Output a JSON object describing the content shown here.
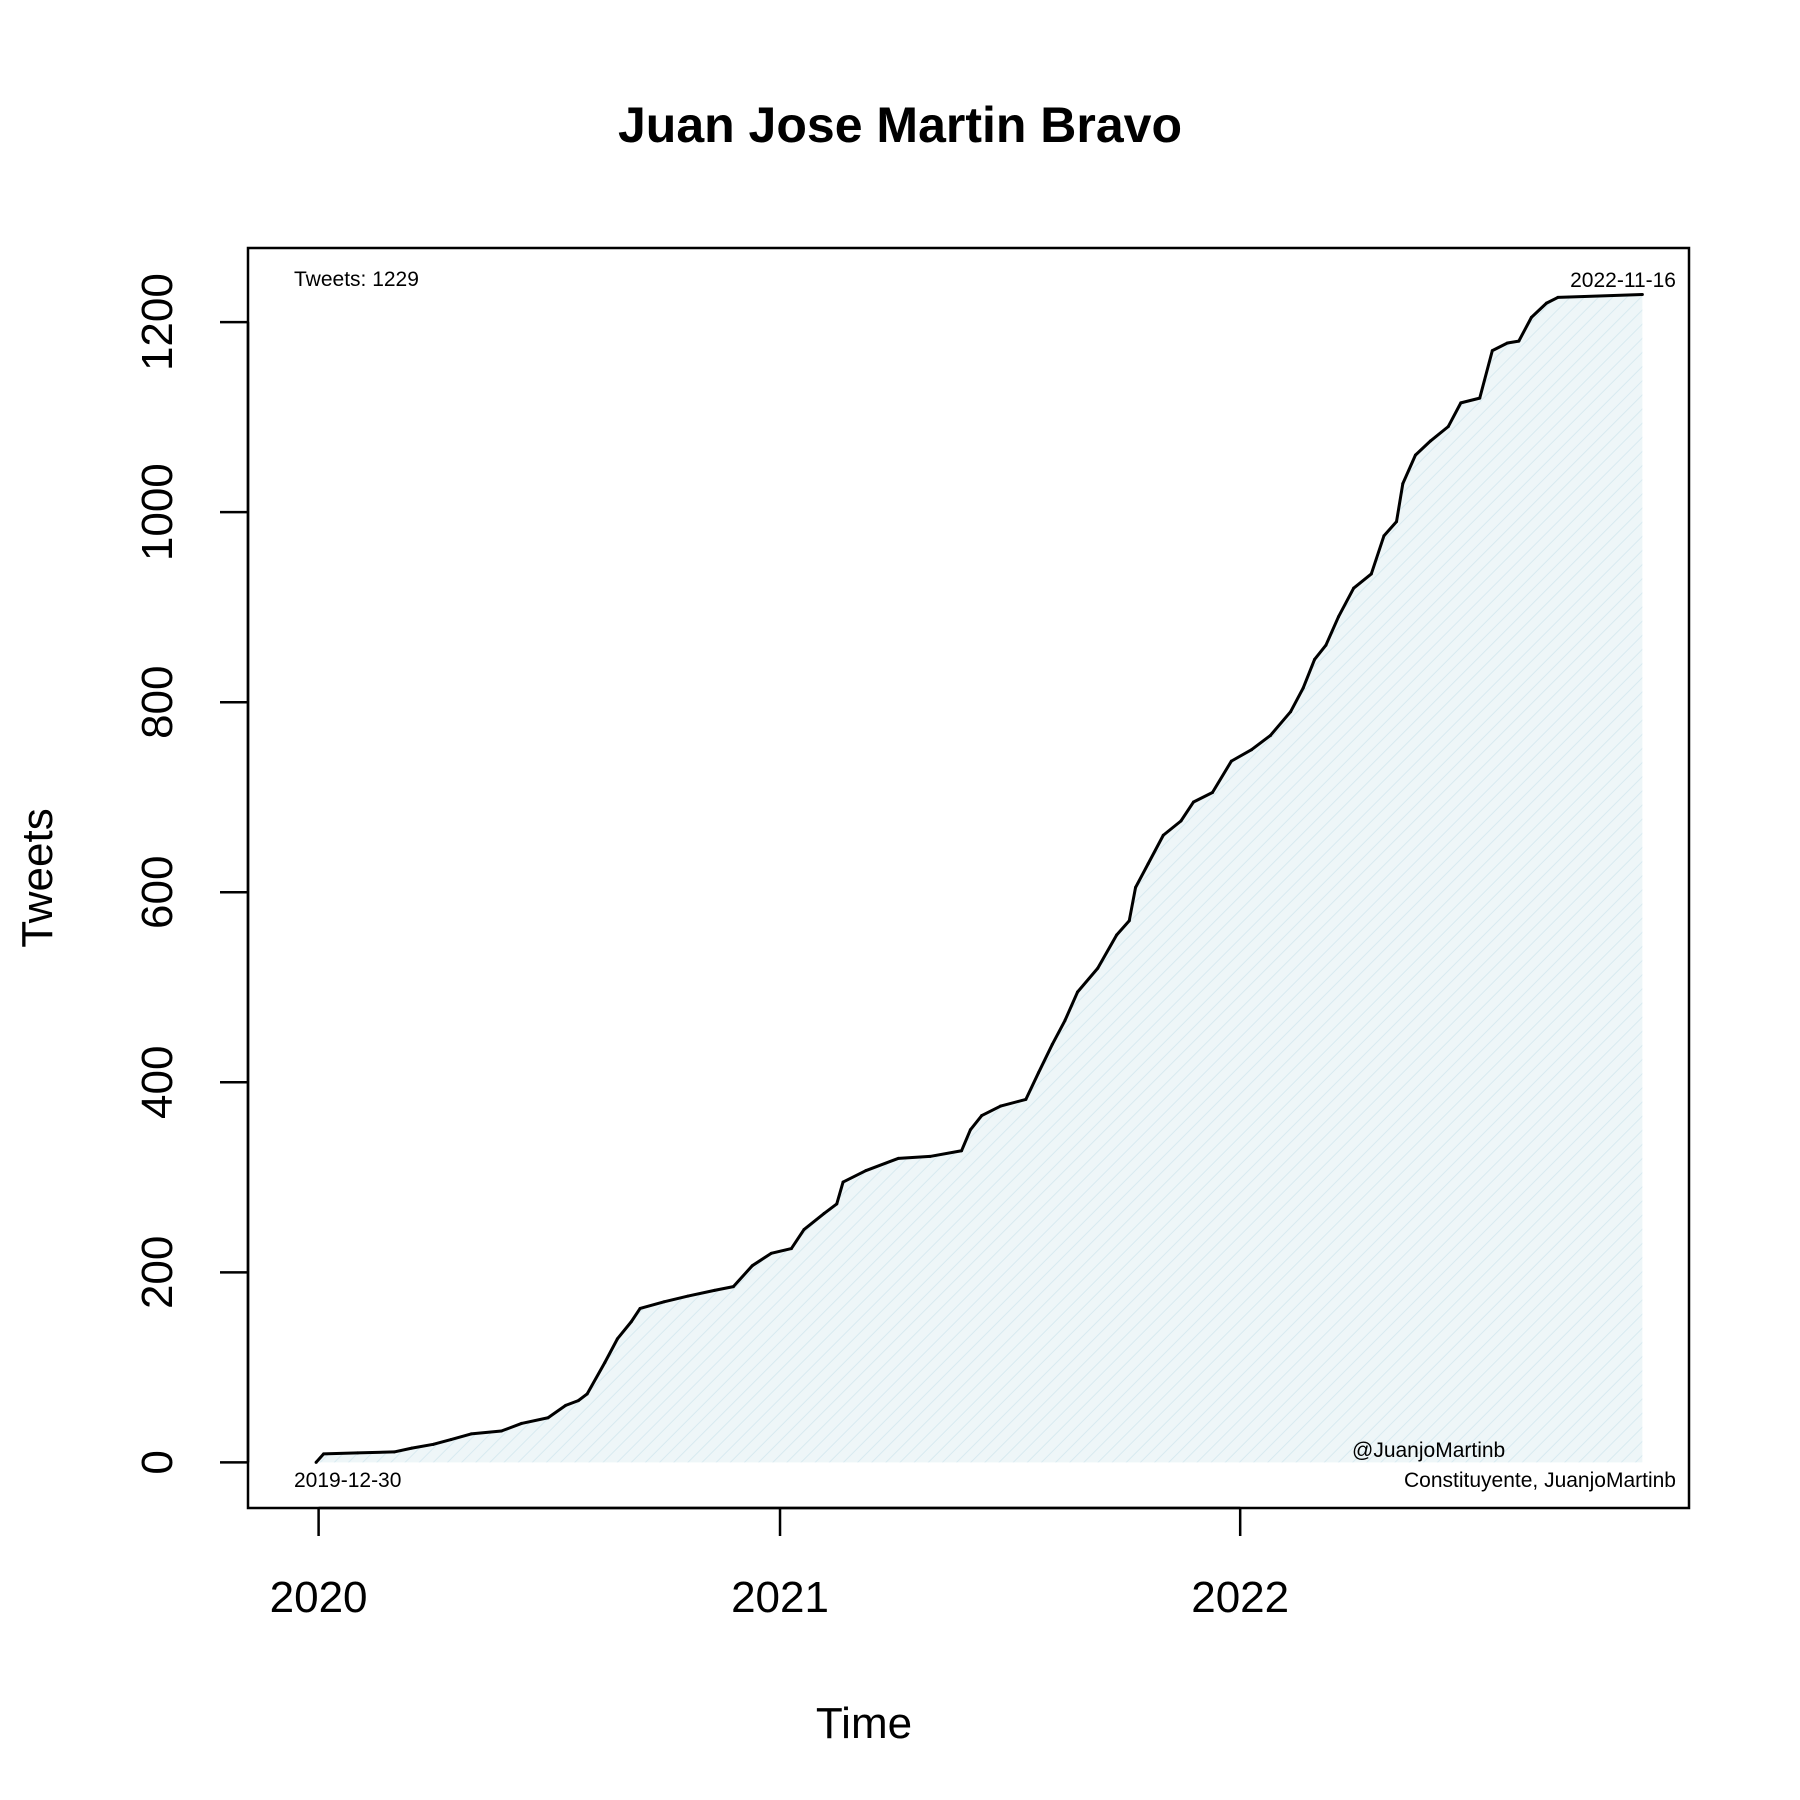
{
  "chart_data": {
    "type": "area",
    "title": "Juan Jose Martin Bravo",
    "xlabel": "Time",
    "ylabel": "Tweets",
    "ylim": [
      -48,
      1278
    ],
    "xlim": [
      "2019-11-06",
      "2022-12-23"
    ],
    "x_ticks": [
      {
        "date": "2020-01-01",
        "label": "2020"
      },
      {
        "date": "2021-01-01",
        "label": "2021"
      },
      {
        "date": "2022-01-01",
        "label": "2022"
      }
    ],
    "y_ticks": [
      0,
      200,
      400,
      600,
      800,
      1000,
      1200
    ],
    "grid": false,
    "colors": {
      "line": "#000000",
      "fill": "#eef6f8",
      "hatch": "#d8eaf0"
    },
    "annotations": {
      "total": "Tweets: 1229",
      "start_date": "2019-12-30",
      "end_date": "2022-11-16",
      "handle": "@JuanjoMartinb",
      "source": "Constituyente, JuanjoMartinb"
    },
    "series": [
      {
        "points": [
          [
            "2019-12-30",
            0
          ],
          [
            "2020-01-05",
            9
          ],
          [
            "2020-02-01",
            10
          ],
          [
            "2020-03-01",
            11
          ],
          [
            "2020-03-15",
            15
          ],
          [
            "2020-04-01",
            19
          ],
          [
            "2020-04-15",
            24
          ],
          [
            "2020-05-01",
            30
          ],
          [
            "2020-05-25",
            33
          ],
          [
            "2020-06-10",
            41
          ],
          [
            "2020-07-01",
            47
          ],
          [
            "2020-07-15",
            60
          ],
          [
            "2020-07-25",
            65
          ],
          [
            "2020-08-01",
            72
          ],
          [
            "2020-08-15",
            105
          ],
          [
            "2020-08-25",
            130
          ],
          [
            "2020-09-05",
            148
          ],
          [
            "2020-09-12",
            162
          ],
          [
            "2020-10-01",
            169
          ],
          [
            "2020-10-20",
            175
          ],
          [
            "2020-11-10",
            181
          ],
          [
            "2020-11-25",
            185
          ],
          [
            "2020-12-10",
            207
          ],
          [
            "2020-12-25",
            220
          ],
          [
            "2021-01-10",
            225
          ],
          [
            "2021-01-20",
            245
          ],
          [
            "2021-02-05",
            262
          ],
          [
            "2021-02-15",
            272
          ],
          [
            "2021-02-20",
            295
          ],
          [
            "2021-03-10",
            307
          ],
          [
            "2021-04-05",
            320
          ],
          [
            "2021-04-30",
            322
          ],
          [
            "2021-05-25",
            328
          ],
          [
            "2021-06-01",
            350
          ],
          [
            "2021-06-10",
            365
          ],
          [
            "2021-06-25",
            375
          ],
          [
            "2021-07-15",
            382
          ],
          [
            "2021-07-25",
            410
          ],
          [
            "2021-08-05",
            440
          ],
          [
            "2021-08-15",
            465
          ],
          [
            "2021-08-25",
            495
          ],
          [
            "2021-09-10",
            520
          ],
          [
            "2021-09-25",
            555
          ],
          [
            "2021-10-05",
            570
          ],
          [
            "2021-10-10",
            605
          ],
          [
            "2021-10-20",
            630
          ],
          [
            "2021-11-01",
            660
          ],
          [
            "2021-11-15",
            675
          ],
          [
            "2021-11-25",
            695
          ],
          [
            "2021-12-10",
            705
          ],
          [
            "2021-12-25",
            738
          ],
          [
            "2022-01-10",
            750
          ],
          [
            "2022-01-25",
            765
          ],
          [
            "2022-02-10",
            790
          ],
          [
            "2022-02-20",
            815
          ],
          [
            "2022-03-01",
            845
          ],
          [
            "2022-03-10",
            860
          ],
          [
            "2022-03-20",
            890
          ],
          [
            "2022-04-01",
            920
          ],
          [
            "2022-04-15",
            935
          ],
          [
            "2022-04-25",
            975
          ],
          [
            "2022-05-05",
            990
          ],
          [
            "2022-05-10",
            1030
          ],
          [
            "2022-05-20",
            1060
          ],
          [
            "2022-06-01",
            1075
          ],
          [
            "2022-06-15",
            1090
          ],
          [
            "2022-06-25",
            1115
          ],
          [
            "2022-07-10",
            1120
          ],
          [
            "2022-07-20",
            1170
          ],
          [
            "2022-08-01",
            1178
          ],
          [
            "2022-08-10",
            1180
          ],
          [
            "2022-08-20",
            1205
          ],
          [
            "2022-09-01",
            1220
          ],
          [
            "2022-09-10",
            1226
          ],
          [
            "2022-10-01",
            1227
          ],
          [
            "2022-11-16",
            1229
          ]
        ]
      }
    ]
  }
}
